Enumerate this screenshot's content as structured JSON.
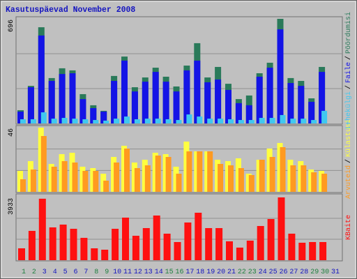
{
  "title": "Kasutuspäevad November 2008",
  "separator": "/",
  "chart_data": [
    {
      "type": "bar",
      "ylim": [
        0,
        696
      ],
      "yticks": [
        696
      ],
      "grid": true,
      "series": [
        {
          "name": "Pöördumisi",
          "color": "#2a7a5a",
          "values": [
            88,
            250,
            640,
            302,
            367,
            353,
            195,
            121,
            84,
            316,
            445,
            241,
            306,
            371,
            311,
            246,
            385,
            534,
            306,
            376,
            264,
            162,
            186,
            334,
            404,
            696,
            302,
            283,
            167,
            376,
            0
          ]
        },
        {
          "name": "Faile",
          "color": "#1414e6",
          "values": [
            79,
            241,
            585,
            283,
            329,
            334,
            162,
            102,
            79,
            283,
            418,
            213,
            278,
            343,
            278,
            213,
            353,
            418,
            274,
            292,
            223,
            135,
            121,
            311,
            371,
            626,
            269,
            250,
            144,
            343,
            0
          ]
        },
        {
          "name": "Lehekülgi",
          "color": "#40c8f0",
          "values": [
            28,
            28,
            74,
            32,
            37,
            32,
            28,
            23,
            19,
            32,
            46,
            28,
            32,
            32,
            28,
            23,
            60,
            46,
            32,
            32,
            28,
            23,
            23,
            37,
            37,
            56,
            32,
            32,
            23,
            84,
            0
          ]
        }
      ]
    },
    {
      "type": "bar",
      "ylim": [
        0,
        46
      ],
      "yticks": [
        46
      ],
      "grid": true,
      "series": [
        {
          "name": "Külastusi",
          "color": "#ffff40",
          "values": [
            15,
            22,
            46,
            20,
            27,
            28,
            18,
            17,
            13,
            25,
            33,
            21,
            23,
            28,
            27,
            18,
            36,
            29,
            29,
            23,
            22,
            24,
            13,
            23,
            31,
            35,
            23,
            22,
            16,
            15,
            0
          ]
        },
        {
          "name": "Arvuteid",
          "color": "#ff9a20",
          "values": [
            9,
            16,
            40,
            18,
            22,
            21,
            15,
            15,
            8,
            21,
            31,
            17,
            19,
            26,
            25,
            13,
            29,
            29,
            29,
            20,
            19,
            17,
            12,
            23,
            25,
            32,
            19,
            19,
            14,
            13,
            0
          ]
        }
      ]
    },
    {
      "type": "bar",
      "ylim": [
        0,
        3933
      ],
      "yticks": [
        3933
      ],
      "grid": true,
      "series": [
        {
          "name": "KBaite",
          "color": "#ff1010",
          "values": [
            743,
            1835,
            3850,
            2054,
            2229,
            1966,
            1398,
            743,
            656,
            1966,
            2666,
            1529,
            2010,
            2797,
            1660,
            1136,
            2360,
            2972,
            2010,
            2010,
            1180,
            787,
            1224,
            2141,
            2578,
            3933,
            1660,
            1093,
            1136,
            1136,
            0
          ]
        }
      ],
      "categories": [
        "1",
        "2",
        "3",
        "4",
        "5",
        "6",
        "7",
        "8",
        "9",
        "10",
        "11",
        "12",
        "13",
        "14",
        "15",
        "16",
        "17",
        "18",
        "19",
        "20",
        "21",
        "22",
        "23",
        "24",
        "25",
        "26",
        "27",
        "28",
        "29",
        "30",
        "31"
      ],
      "category_colors": [
        "#208040",
        "#208040",
        "#1414c0",
        "#1414c0",
        "#1414c0",
        "#1414c0",
        "#1414c0",
        "#208040",
        "#208040",
        "#1414c0",
        "#1414c0",
        "#1414c0",
        "#1414c0",
        "#1414c0",
        "#208040",
        "#208040",
        "#1414c0",
        "#1414c0",
        "#1414c0",
        "#1414c0",
        "#1414c0",
        "#208040",
        "#208040",
        "#1414c0",
        "#1414c0",
        "#1414c0",
        "#1414c0",
        "#1414c0",
        "#208040",
        "#208040",
        "#1414c0"
      ]
    }
  ]
}
